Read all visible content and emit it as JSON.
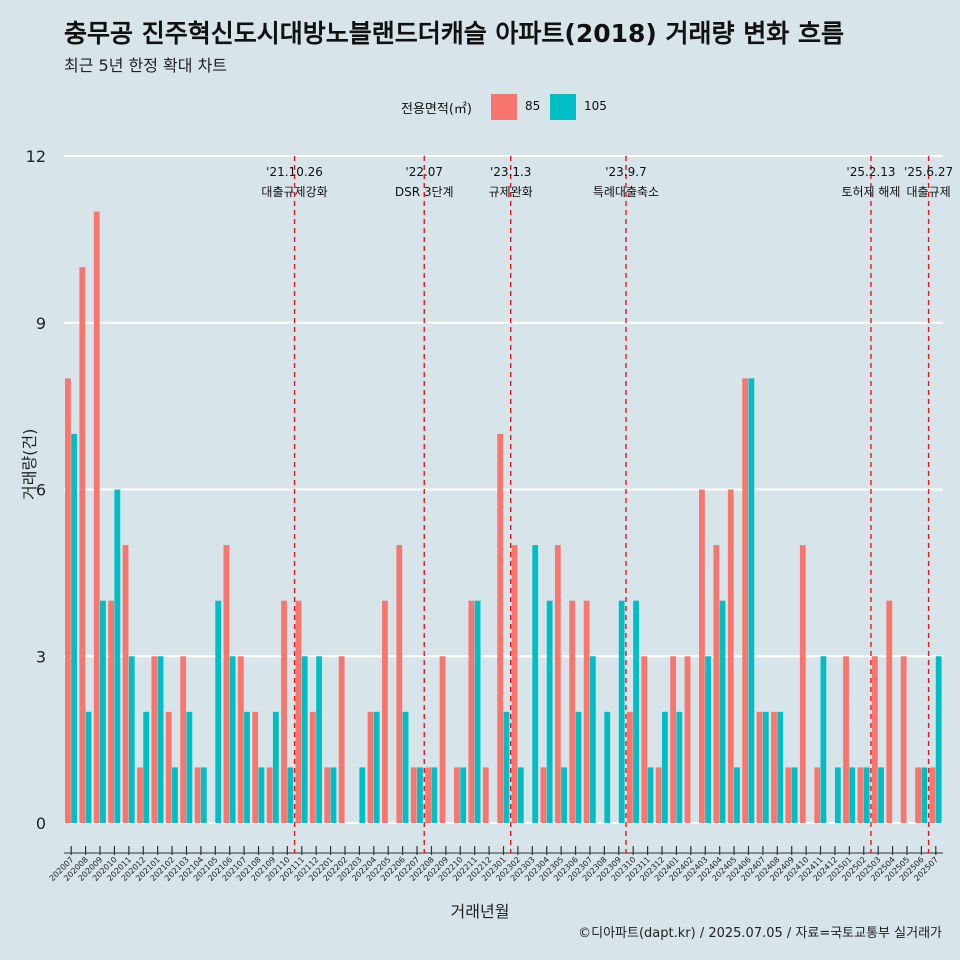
{
  "title": "충무공 진주혁신도시대방노블랜드더캐슬 아파트(2018) 거래량 변화 흐름",
  "subtitle": "최근 5년 한정 확대 차트",
  "caption": "©디아파트(dapt.kr) / 2025.07.05 / 자료=국토교통부 실거래가",
  "colors": {
    "s85": "#f8766d",
    "s105": "#00bfc4",
    "background": "#d7e4ea",
    "grid": "#ffffff",
    "event_line": "#e8141c"
  },
  "chart_data": {
    "type": "bar",
    "title": "충무공 진주혁신도시대방노블랜드더캐슬 아파트(2018) 거래량 변화 흐름",
    "subtitle": "최근 5년 한정 확대 차트",
    "xlabel": "거래년월",
    "ylabel": "거래량(건)",
    "ylim": [
      0,
      12
    ],
    "yticks": [
      "0",
      "3",
      "6",
      "9",
      "12"
    ],
    "legend": {
      "title": "전용면적(㎡)",
      "position": "top"
    },
    "categories": [
      "202007",
      "202008",
      "202009",
      "202010",
      "202011",
      "202012",
      "202101",
      "202102",
      "202103",
      "202104",
      "202105",
      "202106",
      "202107",
      "202108",
      "202109",
      "202110",
      "202111",
      "202112",
      "202201",
      "202202",
      "202203",
      "202204",
      "202205",
      "202206",
      "202207",
      "202208",
      "202209",
      "202210",
      "202211",
      "202212",
      "202301",
      "202302",
      "202303",
      "202304",
      "202305",
      "202306",
      "202307",
      "202308",
      "202309",
      "202310",
      "202311",
      "202312",
      "202401",
      "202402",
      "202403",
      "202404",
      "202405",
      "202406",
      "202407",
      "202408",
      "202409",
      "202410",
      "202411",
      "202412",
      "202501",
      "202502",
      "202503",
      "202504",
      "202505",
      "202506",
      "202507"
    ],
    "series": [
      {
        "name": "85",
        "values": [
          8,
          10,
          11,
          4,
          5,
          1,
          3,
          2,
          3,
          1,
          0,
          5,
          3,
          2,
          1,
          4,
          4,
          2,
          1,
          3,
          0,
          2,
          4,
          5,
          1,
          1,
          3,
          1,
          4,
          1,
          7,
          5,
          0,
          1,
          5,
          4,
          4,
          0,
          0,
          2,
          3,
          1,
          3,
          3,
          6,
          5,
          6,
          8,
          2,
          2,
          1,
          5,
          1,
          0,
          3,
          1,
          3,
          4,
          3,
          1,
          1
        ]
      },
      {
        "name": "105",
        "values": [
          7,
          2,
          4,
          6,
          3,
          2,
          3,
          1,
          2,
          1,
          4,
          3,
          2,
          1,
          2,
          1,
          3,
          3,
          1,
          0,
          1,
          2,
          0,
          2,
          1,
          1,
          0,
          1,
          4,
          0,
          2,
          1,
          5,
          4,
          1,
          2,
          3,
          2,
          4,
          4,
          1,
          2,
          2,
          0,
          3,
          4,
          1,
          8,
          2,
          2,
          1,
          0,
          3,
          1,
          1,
          1,
          1,
          0,
          0,
          1,
          3
        ]
      }
    ],
    "events": [
      {
        "date": "'21.10.26",
        "label": "대출규제강화",
        "after": "202110"
      },
      {
        "date": "'22.07",
        "label": "DSR 3단계",
        "after": "202207"
      },
      {
        "date": "'23.1.3",
        "label": "규제완화",
        "after": "202301"
      },
      {
        "date": "'23.9.7",
        "label": "특례대출축소",
        "after": "202309"
      },
      {
        "date": "'25.2.13",
        "label": "토허제 해제",
        "after": "202502"
      },
      {
        "date": "'25.6.27",
        "label": "대출규제",
        "after": "202506"
      }
    ]
  }
}
